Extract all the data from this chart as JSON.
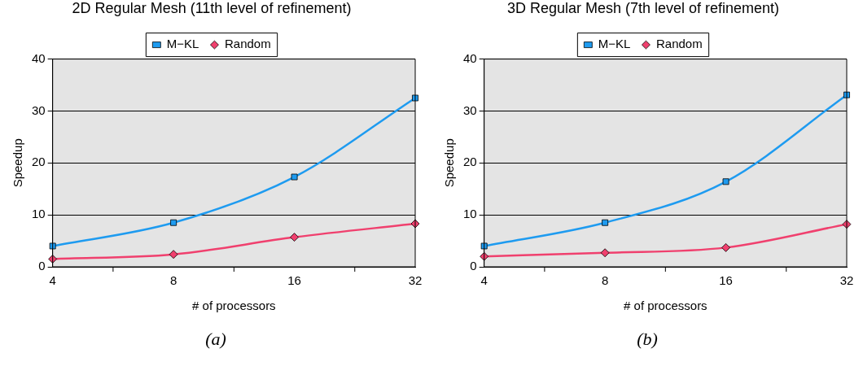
{
  "chart_data": [
    {
      "type": "line",
      "title": "2D Regular Mesh (11th level of refinement)",
      "xlabel": "# of processors",
      "ylabel": "Speedup",
      "categories": [
        "4",
        "8",
        "16",
        "32"
      ],
      "series": [
        {
          "name": "M−KL",
          "color": "#1e9bf0",
          "marker": "square",
          "values": [
            4.0,
            8.5,
            17.3,
            32.5
          ]
        },
        {
          "name": "Random",
          "color": "#f0406e",
          "marker": "diamond",
          "values": [
            1.5,
            2.4,
            5.7,
            8.3
          ]
        }
      ],
      "ylim": [
        0,
        40
      ],
      "yticks": [
        0,
        10,
        20,
        30,
        40
      ],
      "grid": "y",
      "legend": "top",
      "line_style": "solid",
      "annotations": [
        "(a)"
      ]
    },
    {
      "type": "line",
      "title": "3D Regular Mesh (7th level of refinement)",
      "xlabel": "# of processors",
      "ylabel": "Speedup",
      "categories": [
        "4",
        "8",
        "16",
        "32"
      ],
      "series": [
        {
          "name": "M−KL",
          "color": "#1e9bf0",
          "marker": "square",
          "values": [
            4.0,
            8.5,
            16.4,
            33.1
          ]
        },
        {
          "name": "Random",
          "color": "#f0406e",
          "marker": "diamond",
          "values": [
            2.0,
            2.7,
            3.7,
            8.2
          ]
        }
      ],
      "ylim": [
        0,
        40
      ],
      "yticks": [
        0,
        10,
        20,
        30,
        40
      ],
      "grid": "y",
      "legend": "top",
      "line_style": "solid",
      "annotations": [
        "(b)"
      ]
    }
  ]
}
